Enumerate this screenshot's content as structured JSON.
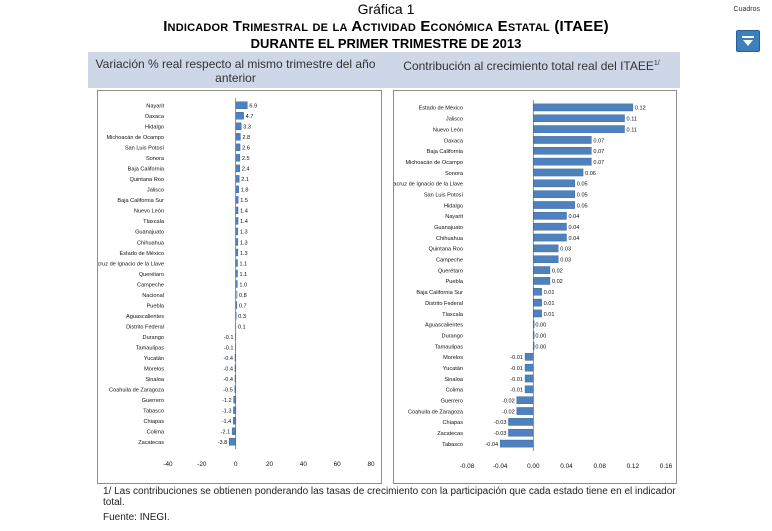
{
  "header": {
    "title": "Gráfica 1",
    "subtitle": "Indicador Trimestral de la Actividad Económica Estatal (ITAEE)",
    "subtitle2": "DURANTE EL PRIMER TRIMESTRE DE 2013",
    "cuadros_label": "Cuadros",
    "cuadros_icon": "chevron-down-icon"
  },
  "panels": {
    "left_header": "Variación % real respecto al mismo trimestre del año anterior",
    "right_header": "Contribución al crecimiento total real del ITAEE",
    "right_header_sup": "1/"
  },
  "footer": {
    "note": "1/ Las contribuciones se obtienen ponderando las tasas de crecimiento con la participación que cada estado tiene en el indicador total.",
    "source": "Fuente: INEGI."
  },
  "colors": {
    "bar": "#4f81bd",
    "bar_light": "#a6bfe0",
    "band": "#cdd7e8",
    "cuadros": "#3c7fbf"
  },
  "chart_data": [
    {
      "type": "bar",
      "orientation": "horizontal",
      "title": "Variación % real respecto al mismo trimestre del año anterior",
      "xlim": [
        -40,
        80
      ],
      "xticks": [
        -40,
        -20,
        0,
        20,
        40,
        60,
        80
      ],
      "categories": [
        "Nayarit",
        "Oaxaca",
        "Hidalgo",
        "Michoacán de Ocampo",
        "San Luis Potosí",
        "Sonora",
        "Baja California",
        "Quintana Roo",
        "Jalisco",
        "Baja California Sur",
        "Nuevo León",
        "Tlaxcala",
        "Guanajuato",
        "Chihuahua",
        "Estado de México",
        "Veracruz de Ignacio de la Llave",
        "Querétaro",
        "Campeche",
        "Nacional",
        "Puebla",
        "Aguascalientes",
        "Distrito Federal",
        "Durango",
        "Tamaulipas",
        "Yucatán",
        "Morelos",
        "Sinaloa",
        "Coahuila de Zaragoza",
        "Guerrero",
        "Tabasco",
        "Chiapas",
        "Colima",
        "Zacatecas"
      ],
      "values": [
        6.9,
        4.7,
        3.3,
        2.8,
        2.6,
        2.5,
        2.4,
        2.1,
        1.8,
        1.5,
        1.4,
        1.4,
        1.3,
        1.3,
        1.3,
        1.1,
        1.1,
        1.0,
        0.8,
        0.7,
        0.3,
        0.1,
        -0.1,
        -0.1,
        -0.4,
        -0.4,
        -0.4,
        -0.5,
        -1.2,
        -1.3,
        -1.4,
        -2.1,
        -3.8
      ],
      "labels": [
        "6.9",
        "4.7",
        "3.3",
        "2.8",
        "2.6",
        "2.5",
        "2.4",
        "2.1",
        "1.8",
        "1.5",
        "1.4",
        "1.4",
        "1.3",
        "1.3",
        "1.3",
        "1.1",
        "1.1",
        "1.0",
        "0.8",
        "0.7",
        "0.3",
        "0.1",
        "-0.1",
        "-0.1",
        "-0.4",
        "-0.4",
        "-0.4",
        "-0.5",
        "-1.2",
        "-1.3",
        "-1.4",
        "-2.1",
        "-3.8"
      ],
      "highlight": "Nacional"
    },
    {
      "type": "bar",
      "orientation": "horizontal",
      "title": "Contribución al crecimiento total real del ITAEE",
      "xlim": [
        -0.08,
        0.16
      ],
      "xticks": [
        -0.08,
        -0.04,
        0.0,
        0.04,
        0.08,
        0.12,
        0.16
      ],
      "xtick_labels": [
        "-0.08",
        "-0.04",
        "0.00",
        "0.04",
        "0.08",
        "0.12",
        "0.16"
      ],
      "categories": [
        "Estado de México",
        "Jalisco",
        "Nuevo León",
        "Oaxaca",
        "Baja California",
        "Michoacán de Ocampo",
        "Sonora",
        "Veracruz de Ignacio de la Llave",
        "San Luis Potosí",
        "Hidalgo",
        "Nayarit",
        "Guanajuato",
        "Chihuahua",
        "Quintana Roo",
        "Campeche",
        "Querétaro",
        "Puebla",
        "Baja California Sur",
        "Distrito Federal",
        "Tlaxcala",
        "Aguascalientes",
        "Durango",
        "Tamaulipas",
        "Morelos",
        "Yucatán",
        "Sinaloa",
        "Colima",
        "Guerrero",
        "Coahuila de Zaragoza",
        "Chiapas",
        "Zacatecas",
        "Tabasco"
      ],
      "values": [
        0.12,
        0.11,
        0.11,
        0.07,
        0.07,
        0.07,
        0.06,
        0.05,
        0.05,
        0.05,
        0.04,
        0.04,
        0.04,
        0.03,
        0.03,
        0.02,
        0.02,
        0.01,
        0.01,
        0.01,
        0.0,
        0.0,
        0.0,
        -0.01,
        -0.01,
        -0.01,
        -0.01,
        -0.02,
        -0.02,
        -0.03,
        -0.03,
        -0.04
      ],
      "labels": [
        "0.12",
        "0.11",
        "0.11",
        "0.07",
        "0.07",
        "0.07",
        "0.06",
        "0.05",
        "0.05",
        "0.05",
        "0.04",
        "0.04",
        "0.04",
        "0.03",
        "0.03",
        "0.02",
        "0.02",
        "0.01",
        "0.01",
        "0.01",
        "0.00",
        "0.00",
        "0.00",
        "-0.01",
        "-0.01",
        "-0.01",
        "-0.01",
        "-0.02",
        "-0.02",
        "-0.03",
        "-0.03",
        "-0.04"
      ]
    }
  ]
}
